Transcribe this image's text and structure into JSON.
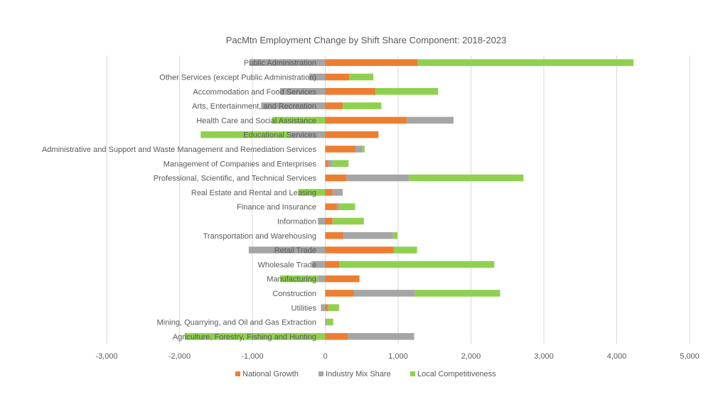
{
  "chart_data": {
    "type": "bar",
    "orientation": "horizontal",
    "stacked": "diverging",
    "title": "PacMtn Employment Change by Shift Share Component: 2018-2023",
    "categories": [
      "Public Administration",
      "Other Services (except Public Administration)",
      "Accommodation and Food Services",
      "Arts, Entertainment, and Recreation",
      "Health Care and Social Assistance",
      "Educational Services",
      "Administrative and Support and Waste Management and Remediation Services",
      "Management of Companies and Enterprises",
      "Professional, Scientific, and Technical Services",
      "Real Estate and Rental and Leasing",
      "Finance and Insurance",
      "Information",
      "Transportation and Warehousing",
      "Retail Trade",
      "Wholesale Trade",
      "Manufacturing",
      "Construction",
      "Utilities",
      "Mining, Quarrying, and Oil and Gas Extraction",
      "Agriculture, Forestry, Fishing and Hunting"
    ],
    "series": [
      {
        "name": "National Growth",
        "color": "#ED7D31",
        "values": [
          1270,
          330,
          690,
          240,
          1120,
          730,
          410,
          40,
          290,
          100,
          160,
          100,
          250,
          940,
          190,
          470,
          390,
          40,
          0,
          310
        ]
      },
      {
        "name": "Industry Mix Share",
        "color": "#A5A5A5",
        "values": [
          -1040,
          -220,
          -620,
          -880,
          640,
          -480,
          100,
          60,
          860,
          140,
          30,
          -100,
          680,
          -1050,
          -180,
          -100,
          840,
          -60,
          20,
          910
        ]
      },
      {
        "name": "Local Competitiveness",
        "color": "#8FD14F",
        "values": [
          2960,
          330,
          860,
          530,
          -730,
          -1230,
          30,
          220,
          1570,
          -370,
          220,
          430,
          60,
          320,
          2130,
          -520,
          1170,
          150,
          90,
          -1930
        ]
      }
    ],
    "xlim": [
      -3000,
      5000
    ],
    "xticks": [
      "-3,000",
      "-2,000",
      "-1,000",
      "0",
      "1,000",
      "2,000",
      "3,000",
      "4,000",
      "5,000"
    ],
    "grid": true,
    "legend": "bottom"
  }
}
